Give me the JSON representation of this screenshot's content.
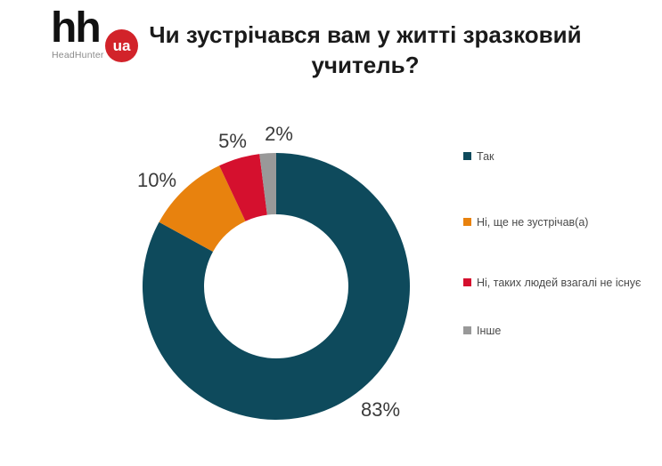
{
  "logo": {
    "hh_text": "hh",
    "badge_text": "ua",
    "subtitle": "HeadHunter",
    "badge_color": "#d2232a"
  },
  "title": "Чи зустрічався вам у житті зразковий учитель?",
  "chart_data": {
    "type": "pie",
    "subtype": "donut",
    "title": "Чи зустрічався вам у житті зразковий учитель?",
    "start_angle_deg": 0,
    "direction": "clockwise",
    "hole_ratio": 0.54,
    "legend_position": "right",
    "grid": false,
    "segments": [
      {
        "label": "Так",
        "value": 83,
        "pct_label": "83%",
        "color": "#0e4a5c"
      },
      {
        "label": "Ні, ще не зустрічав(а)",
        "value": 10,
        "pct_label": "10%",
        "color": "#e8820e"
      },
      {
        "label": "Ні, таких людей взагалі не існує",
        "value": 5,
        "pct_label": "5%",
        "color": "#d5102e"
      },
      {
        "label": "Інше",
        "value": 2,
        "pct_label": "2%",
        "color": "#999999"
      }
    ]
  }
}
